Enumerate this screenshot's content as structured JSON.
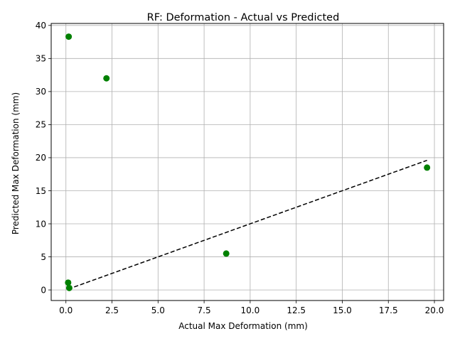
{
  "chart_data": {
    "type": "scatter",
    "title": "RF: Deformation - Actual vs Predicted",
    "xlabel": "Actual Max Deformation (mm)",
    "ylabel": "Predicted Max Deformation (mm)",
    "xlim": [
      -0.8,
      20.5
    ],
    "ylim": [
      -1.6,
      40.3
    ],
    "xticks": [
      0.0,
      2.5,
      5.0,
      7.5,
      10.0,
      12.5,
      15.0,
      17.5,
      20.0
    ],
    "xtick_labels": [
      "0.0",
      "2.5",
      "5.0",
      "7.5",
      "10.0",
      "12.5",
      "15.0",
      "17.5",
      "20.0"
    ],
    "yticks": [
      0,
      5,
      10,
      15,
      20,
      25,
      30,
      35,
      40
    ],
    "ytick_labels": [
      "0",
      "5",
      "10",
      "15",
      "20",
      "25",
      "30",
      "35",
      "40"
    ],
    "grid": true,
    "series": [
      {
        "marker_color": "#008000",
        "x": [
          0.15,
          2.2,
          19.6,
          8.7,
          0.12,
          0.18
        ],
        "y": [
          38.3,
          32.0,
          18.5,
          5.5,
          1.1,
          0.3
        ]
      }
    ],
    "reference_line": {
      "style": "dashed",
      "color": "#000000",
      "x": [
        0.12,
        19.6
      ],
      "y": [
        0.12,
        19.6
      ]
    }
  }
}
